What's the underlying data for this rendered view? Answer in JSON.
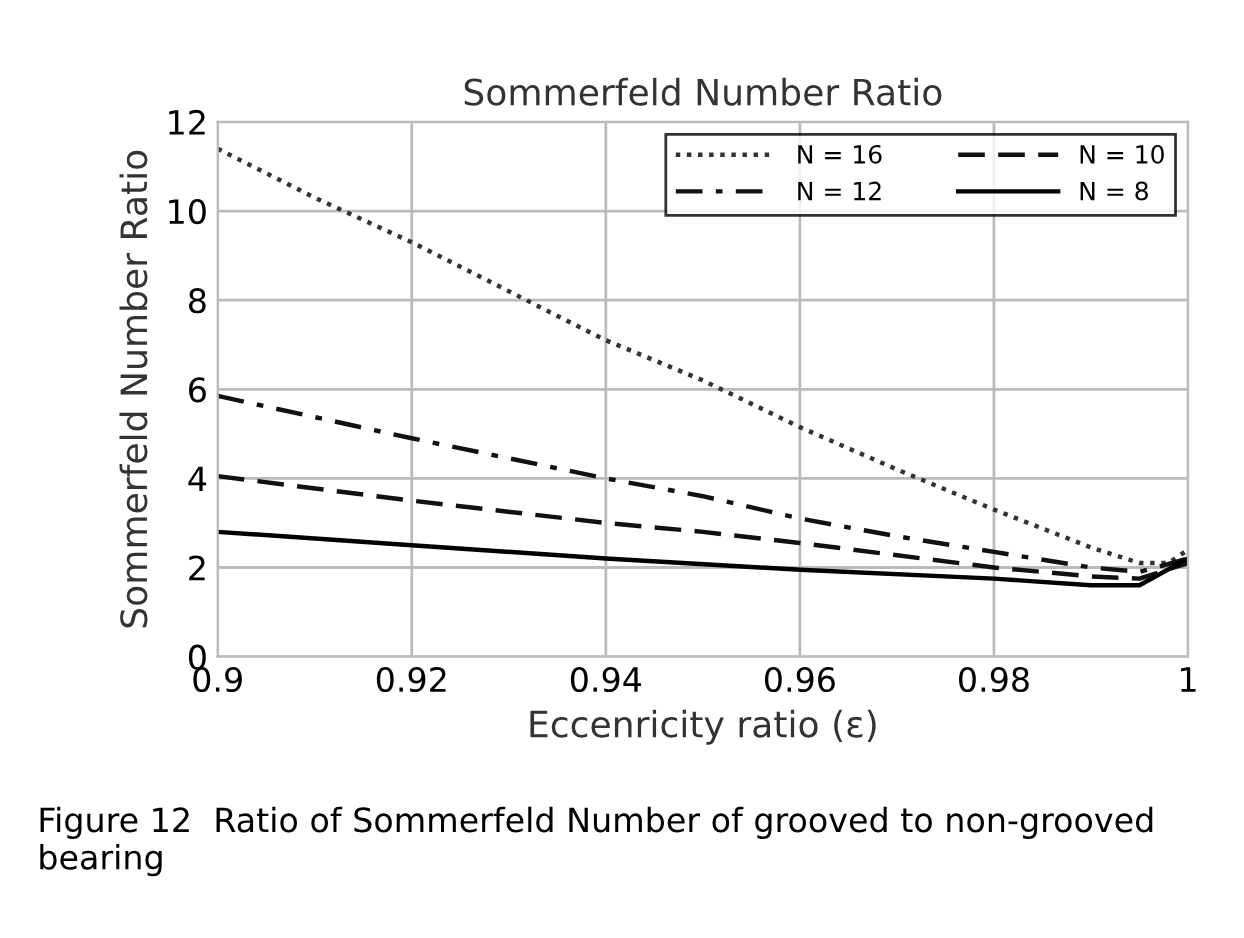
{
  "chart_data": {
    "type": "line",
    "title": "Sommerfeld Number Ratio",
    "xlabel": "Eccenricity ratio (ε)",
    "ylabel": "Sommerfeld Number Ratio",
    "xlim": [
      0.9,
      1
    ],
    "xticks": [
      {
        "value": 0.9,
        "label": "0.9"
      },
      0.92,
      0.94,
      0.96,
      0.98,
      {
        "value": 1,
        "label": "1"
      }
    ],
    "ylim": [
      0,
      12
    ],
    "yticks": [
      0,
      2,
      4,
      6,
      8,
      10,
      12
    ],
    "grid": true,
    "legend": "top right",
    "annotations": [
      "Figure 12  Ratio of Sommerfeld Number of grooved to non-grooved bearing"
    ],
    "series": [
      {
        "name": "N = 16",
        "color": "#333333",
        "line_style": "dotted",
        "x": [
          0.9,
          0.91,
          0.92,
          0.93,
          0.94,
          0.95,
          0.96,
          0.97,
          0.98,
          0.99,
          0.995,
          0.998,
          1.0
        ],
        "values": [
          11.4,
          10.3,
          9.3,
          8.2,
          7.1,
          6.2,
          5.15,
          4.2,
          3.3,
          2.45,
          2.1,
          2.1,
          2.4
        ]
      },
      {
        "name": "N = 12",
        "color": "#111111",
        "line_style": "dashdot",
        "x": [
          0.9,
          0.92,
          0.94,
          0.95,
          0.96,
          0.97,
          0.98,
          0.99,
          0.995,
          1.0
        ],
        "values": [
          5.85,
          4.9,
          4.0,
          3.6,
          3.1,
          2.7,
          2.35,
          2.0,
          1.9,
          2.2
        ]
      },
      {
        "name": "N = 10",
        "color": "#111111",
        "line_style": "dashed",
        "x": [
          0.9,
          0.92,
          0.94,
          0.95,
          0.96,
          0.98,
          0.99,
          0.995,
          1.0
        ],
        "values": [
          4.05,
          3.5,
          3.0,
          2.8,
          2.55,
          2.0,
          1.8,
          1.75,
          2.1
        ]
      },
      {
        "name": "N = 8",
        "color": "#000000",
        "line_style": "solid",
        "x": [
          0.9,
          0.92,
          0.94,
          0.96,
          0.98,
          0.99,
          0.995,
          1.0
        ],
        "values": [
          2.8,
          2.5,
          2.2,
          1.95,
          1.75,
          1.6,
          1.6,
          2.2
        ]
      }
    ]
  }
}
